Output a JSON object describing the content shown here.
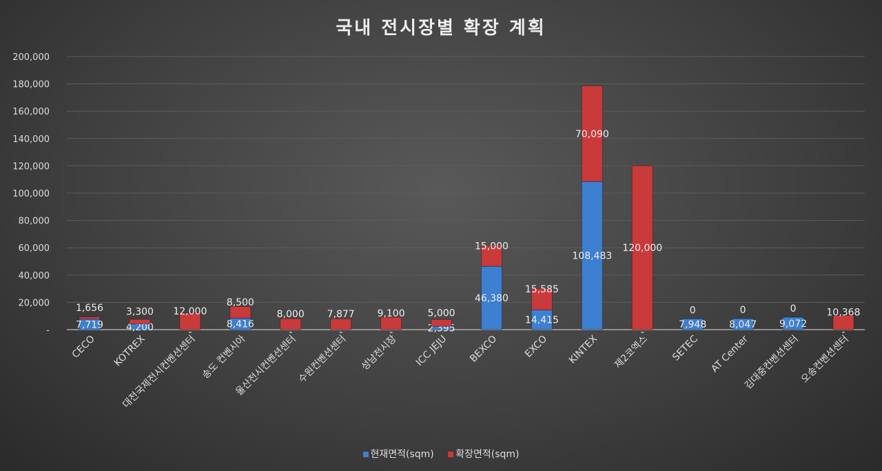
{
  "chart_data": {
    "type": "bar",
    "stacked": true,
    "title": "국내 전시장별 확장 계획",
    "categories": [
      "CECO",
      "KOTREX",
      "대전국제전시컨벤션센터",
      "송도 컨벤시아",
      "울산전시컨벤션센터",
      "수원컨벤션센터",
      "성남전시장",
      "ICC JEJU",
      "BEXCO",
      "EXCO",
      "KINTEX",
      "제2코엑스",
      "SETEC",
      "AT Center",
      "김대중컨벤션센터",
      "오송컨벤션센터"
    ],
    "series": [
      {
        "name": "현재면적(sqm)",
        "color": "#3d7fd0",
        "values": [
          7719,
          4200,
          0,
          8416,
          0,
          0,
          0,
          2395,
          46380,
          14415,
          108483,
          0,
          7948,
          8047,
          9072,
          0
        ]
      },
      {
        "name": "확장면적(sqm)",
        "color": "#c93a3a",
        "values": [
          1656,
          3300,
          12000,
          8500,
          8000,
          7877,
          9100,
          5000,
          15000,
          15585,
          70090,
          120000,
          0,
          0,
          0,
          10368
        ]
      }
    ],
    "ylim": [
      0,
      200000
    ],
    "yticks": [
      "-",
      "20,000",
      "40,000",
      "60,000",
      "80,000",
      "100,000",
      "120,000",
      "140,000",
      "160,000",
      "180,000",
      "200,000"
    ],
    "grid": true,
    "legend": "bottom"
  }
}
